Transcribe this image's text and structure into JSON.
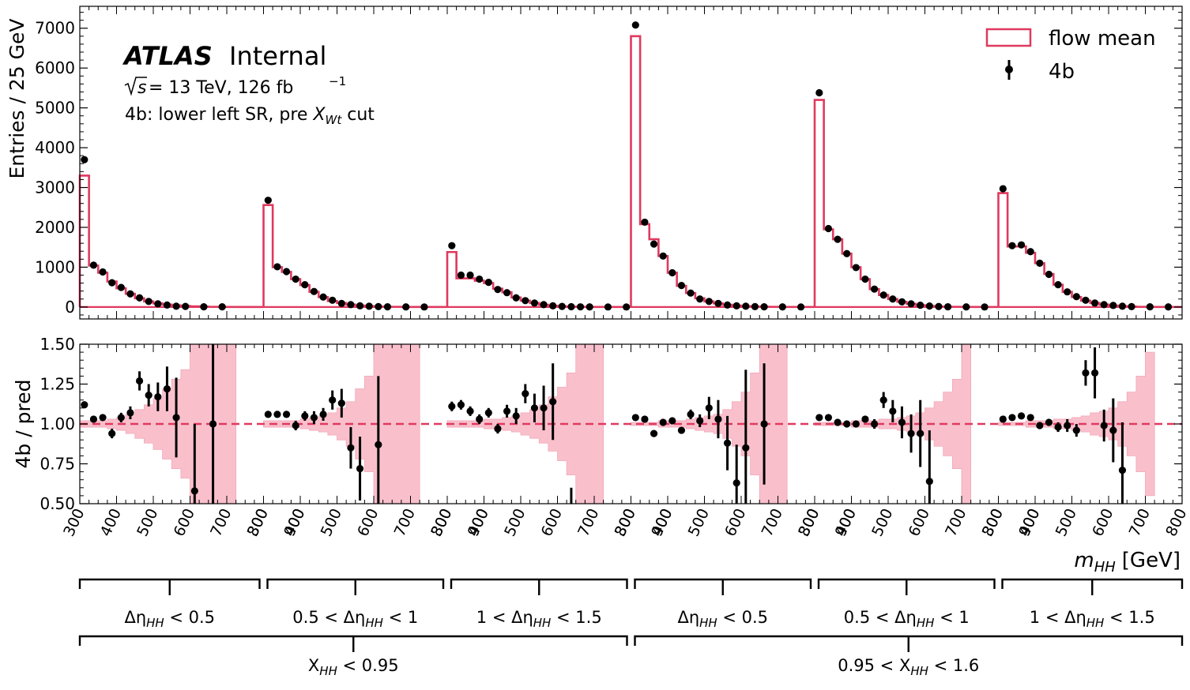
{
  "chart_data": {
    "type": "step-histogram-with-ratio",
    "x_repeat_ticks": [
      "300",
      "400",
      "500",
      "600",
      "700",
      "800",
      "900"
    ],
    "xlabel": "m",
    "xlabel_sub": "HH",
    "xlabel_unit": "[GeV]",
    "top": {
      "ylabel": "Entries / 25 GeV",
      "yticks": [
        "0",
        "1000",
        "2000",
        "3000",
        "4000",
        "5000",
        "6000",
        "7000"
      ],
      "ylim": [
        -300,
        7550
      ],
      "atlas": "ATLAS",
      "internal": "Internal",
      "energy_text": "s",
      "energy_rest": " = 13 TeV, 126 fb",
      "energy_sup": "−1",
      "selection_text": "4b: lower left SR, pre ",
      "selection_var": "X",
      "selection_sub": "Wt",
      "selection_tail": " cut",
      "legend": {
        "placement": "top-right",
        "hist_label": "flow mean",
        "points_label": "4b"
      },
      "hist_color": "#e0395f",
      "blocks": [
        {
          "start_bin": 0,
          "pred": [
            3300,
            1040,
            860,
            640,
            470,
            330,
            220,
            140,
            90,
            60,
            40,
            25,
            15,
            8,
            4,
            2,
            1
          ],
          "data_bins": [
            0,
            1,
            2,
            3,
            4,
            5,
            6,
            7,
            8,
            9,
            10,
            11,
            13,
            15
          ],
          "data": [
            3700,
            1050,
            880,
            610,
            490,
            330,
            230,
            140,
            80,
            50,
            20,
            15,
            5,
            5
          ]
        },
        {
          "start_bin": 20,
          "pred": [
            2560,
            1000,
            880,
            700,
            550,
            380,
            250,
            150,
            100,
            60,
            35,
            20,
            10,
            5,
            3,
            2,
            1
          ],
          "data_bins": [
            0,
            1,
            2,
            3,
            4,
            5,
            6,
            7,
            8,
            9,
            10,
            11,
            12,
            13,
            15,
            17
          ],
          "data": [
            2680,
            1010,
            890,
            700,
            560,
            390,
            250,
            170,
            90,
            60,
            30,
            20,
            10,
            5,
            2,
            1
          ]
        },
        {
          "start_bin": 40,
          "pred": [
            1380,
            720,
            720,
            660,
            600,
            460,
            370,
            240,
            160,
            100,
            55,
            30,
            15,
            8,
            4,
            2,
            1
          ],
          "data_bins": [
            0,
            1,
            2,
            3,
            4,
            5,
            6,
            7,
            8,
            9,
            10,
            11,
            12,
            13,
            14,
            15,
            17,
            19
          ],
          "data": [
            1540,
            800,
            800,
            700,
            620,
            440,
            360,
            230,
            160,
            100,
            60,
            30,
            15,
            8,
            4,
            2,
            1,
            1
          ]
        },
        {
          "start_bin": 60,
          "pred": [
            6800,
            2080,
            1700,
            1280,
            860,
            530,
            350,
            220,
            140,
            90,
            55,
            35,
            20,
            12,
            6,
            3,
            1
          ],
          "data_bins": [
            0,
            1,
            2,
            3,
            4,
            5,
            6,
            7,
            8,
            9,
            10,
            11,
            12,
            13,
            14,
            16,
            18
          ],
          "data": [
            7080,
            2130,
            1580,
            1280,
            860,
            540,
            350,
            200,
            140,
            90,
            50,
            30,
            20,
            10,
            5,
            3,
            1
          ]
        },
        {
          "start_bin": 80,
          "pred": [
            5200,
            1950,
            1700,
            1340,
            1000,
            700,
            450,
            300,
            200,
            130,
            80,
            45,
            25,
            12,
            6,
            3,
            1
          ],
          "data_bins": [
            0,
            1,
            2,
            3,
            4,
            5,
            6,
            7,
            8,
            9,
            10,
            11,
            12,
            13,
            14,
            16,
            18
          ],
          "data": [
            5380,
            1970,
            1700,
            1340,
            990,
            700,
            450,
            300,
            200,
            130,
            80,
            45,
            25,
            12,
            6,
            3,
            1
          ]
        },
        {
          "start_bin": 100,
          "pred": [
            2860,
            1520,
            1520,
            1360,
            1100,
            830,
            560,
            380,
            250,
            160,
            100,
            60,
            35,
            20,
            10,
            5,
            2
          ],
          "data_bins": [
            0,
            1,
            2,
            3,
            4,
            5,
            6,
            7,
            8,
            9,
            10,
            11,
            12,
            13,
            14,
            16,
            18
          ],
          "data": [
            2970,
            1540,
            1560,
            1390,
            1100,
            820,
            560,
            380,
            260,
            170,
            100,
            60,
            40,
            20,
            10,
            5,
            2
          ]
        }
      ]
    },
    "ratio": {
      "ylabel": "4b / pred",
      "yticks": [
        "0.50",
        "0.75",
        "1.00",
        "1.25",
        "1.50"
      ],
      "ylim": [
        0.5,
        1.5
      ],
      "band_color": "#f9c0cc",
      "line_color": "#e0395f",
      "blocks": [
        {
          "band": [
            0.02,
            0.02,
            0.02,
            0.03,
            0.04,
            0.06,
            0.09,
            0.12,
            0.16,
            0.22,
            0.28,
            0.34,
            0.55,
            0.55,
            0.55,
            0.55,
            0.55
          ],
          "points": [
            [
              0,
              1.12,
              0.02
            ],
            [
              1,
              1.03,
              0.02
            ],
            [
              2,
              1.04,
              0.02
            ],
            [
              3,
              0.94,
              0.03
            ],
            [
              4,
              1.04,
              0.03
            ],
            [
              5,
              1.07,
              0.04
            ],
            [
              6,
              1.27,
              0.06
            ],
            [
              7,
              1.18,
              0.07
            ],
            [
              8,
              1.17,
              0.09
            ],
            [
              9,
              1.22,
              0.14
            ],
            [
              10,
              1.04,
              0.25
            ],
            [
              12,
              0.58,
              0.42
            ],
            [
              14,
              1.0,
              1.0
            ]
          ]
        },
        {
          "band": [
            0.02,
            0.02,
            0.02,
            0.02,
            0.03,
            0.04,
            0.05,
            0.07,
            0.1,
            0.14,
            0.22,
            0.3,
            0.55,
            0.55,
            0.55,
            0.55,
            0.55
          ],
          "points": [
            [
              0,
              1.06,
              0.02
            ],
            [
              1,
              1.06,
              0.02
            ],
            [
              2,
              1.06,
              0.02
            ],
            [
              3,
              0.99,
              0.03
            ],
            [
              4,
              1.05,
              0.03
            ],
            [
              5,
              1.04,
              0.04
            ],
            [
              6,
              1.06,
              0.04
            ],
            [
              7,
              1.15,
              0.06
            ],
            [
              8,
              1.13,
              0.09
            ],
            [
              9,
              0.85,
              0.13
            ],
            [
              10,
              0.72,
              0.2
            ],
            [
              12,
              0.87,
              0.43
            ]
          ]
        },
        {
          "band": [
            0.02,
            0.02,
            0.02,
            0.02,
            0.03,
            0.03,
            0.04,
            0.05,
            0.07,
            0.09,
            0.12,
            0.17,
            0.23,
            0.32,
            0.55,
            0.55,
            0.55
          ],
          "points": [
            [
              0,
              1.11,
              0.03
            ],
            [
              1,
              1.12,
              0.03
            ],
            [
              2,
              1.08,
              0.03
            ],
            [
              3,
              1.03,
              0.03
            ],
            [
              4,
              1.07,
              0.03
            ],
            [
              5,
              0.97,
              0.03
            ],
            [
              6,
              1.08,
              0.04
            ],
            [
              7,
              1.05,
              0.05
            ],
            [
              8,
              1.19,
              0.06
            ],
            [
              9,
              1.1,
              0.09
            ],
            [
              10,
              1.1,
              0.14
            ],
            [
              11,
              1.14,
              0.24
            ],
            [
              13,
              0.3,
              0.3
            ]
          ]
        },
        {
          "band": [
            0.01,
            0.01,
            0.01,
            0.02,
            0.02,
            0.02,
            0.03,
            0.04,
            0.05,
            0.06,
            0.09,
            0.14,
            0.2,
            0.32,
            0.55,
            0.55,
            0.55
          ],
          "points": [
            [
              0,
              1.04,
              0.01
            ],
            [
              1,
              1.03,
              0.01
            ],
            [
              2,
              0.94,
              0.02
            ],
            [
              3,
              1.01,
              0.02
            ],
            [
              4,
              1.02,
              0.02
            ],
            [
              5,
              0.96,
              0.02
            ],
            [
              6,
              1.06,
              0.03
            ],
            [
              7,
              1.02,
              0.04
            ],
            [
              8,
              1.1,
              0.07
            ],
            [
              9,
              1.03,
              0.12
            ],
            [
              10,
              0.88,
              0.17
            ],
            [
              11,
              0.63,
              0.24
            ],
            [
              12,
              0.85,
              0.49
            ],
            [
              14,
              1.0,
              0.38
            ]
          ]
        },
        {
          "band": [
            0.01,
            0.01,
            0.01,
            0.01,
            0.02,
            0.02,
            0.02,
            0.03,
            0.03,
            0.04,
            0.05,
            0.07,
            0.1,
            0.14,
            0.2,
            0.28,
            0.55
          ],
          "points": [
            [
              0,
              1.04,
              0.01
            ],
            [
              1,
              1.04,
              0.01
            ],
            [
              2,
              1.01,
              0.01
            ],
            [
              3,
              1.0,
              0.01
            ],
            [
              4,
              1.0,
              0.02
            ],
            [
              5,
              1.03,
              0.02
            ],
            [
              6,
              1.0,
              0.03
            ],
            [
              7,
              1.15,
              0.05
            ],
            [
              8,
              1.08,
              0.07
            ],
            [
              9,
              1.01,
              0.1
            ],
            [
              10,
              0.94,
              0.12
            ],
            [
              11,
              0.94,
              0.21
            ],
            [
              12,
              0.64,
              0.32
            ]
          ]
        },
        {
          "band": [
            0.01,
            0.01,
            0.01,
            0.02,
            0.02,
            0.02,
            0.03,
            0.03,
            0.04,
            0.05,
            0.07,
            0.08,
            0.1,
            0.14,
            0.2,
            0.3,
            0.45
          ],
          "points": [
            [
              0,
              1.03,
              0.01
            ],
            [
              1,
              1.04,
              0.01
            ],
            [
              2,
              1.05,
              0.01
            ],
            [
              3,
              1.04,
              0.02
            ],
            [
              4,
              0.99,
              0.02
            ],
            [
              5,
              1.01,
              0.02
            ],
            [
              6,
              0.98,
              0.03
            ],
            [
              7,
              0.99,
              0.04
            ],
            [
              8,
              0.96,
              0.04
            ],
            [
              9,
              1.32,
              0.08
            ],
            [
              10,
              1.32,
              0.16
            ],
            [
              11,
              0.99,
              0.1
            ],
            [
              12,
              0.96,
              0.2
            ],
            [
              13,
              0.71,
              0.3
            ]
          ]
        }
      ]
    },
    "category_labels": [
      {
        "pre": "Δη",
        "sub": "HH",
        "post": " < 0.5"
      },
      {
        "pre": "0.5 < Δη",
        "sub": "HH",
        "post": " < 1"
      },
      {
        "pre": "1 < Δη",
        "sub": "HH",
        "post": " < 1.5"
      },
      {
        "pre": "Δη",
        "sub": "HH",
        "post": " < 0.5"
      },
      {
        "pre": "0.5 < Δη",
        "sub": "HH",
        "post": " < 1"
      },
      {
        "pre": "1 < Δη",
        "sub": "HH",
        "post": " < 1.5"
      }
    ],
    "group_labels": [
      {
        "pre": "X",
        "sub": "HH",
        "post": " < 0.95"
      },
      {
        "pre": "0.95 < X",
        "sub": "HH",
        "post": " < 1.6"
      }
    ]
  }
}
